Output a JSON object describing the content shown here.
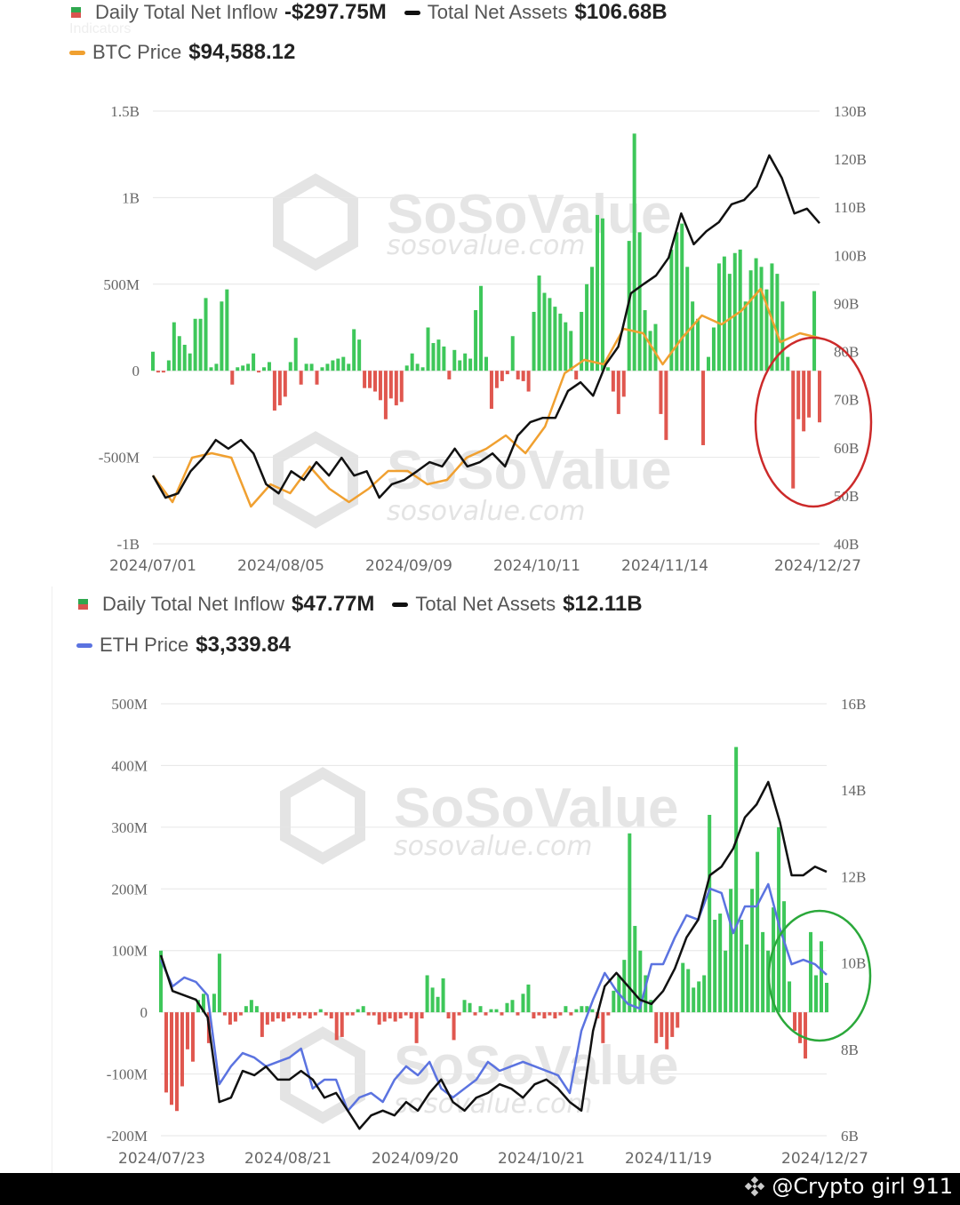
{
  "colors": {
    "inflow_pos": "#3ec75a",
    "inflow_neg": "#e0574f",
    "assets": "#111111",
    "btc_price": "#f0a030",
    "eth_price": "#5b73e0",
    "circle_top": "#cc2a2a",
    "circle_bottom": "#2aa83a",
    "grid": "#e6e6e6"
  },
  "watermark": {
    "brand": "SoSoValue",
    "site": "sosovalue.com"
  },
  "footer": {
    "credit": "@Crypto girl 911",
    "icon": "binance-logo-icon"
  },
  "btc_legend": {
    "inflow_label": "Daily Total Net Inflow",
    "inflow_value": "-$297.75M",
    "assets_label": "Total Net Assets",
    "assets_value": "$106.68B",
    "indicators": "Indicators",
    "price_label": "BTC Price",
    "price_value": "$94,588.12"
  },
  "eth_legend": {
    "inflow_label": "Daily Total Net Inflow",
    "inflow_value": "$47.77M",
    "assets_label": "Total Net Assets",
    "assets_value": "$12.11B",
    "price_label": "ETH Price",
    "price_value": "$3,339.84"
  },
  "chart_data": [
    {
      "type": "bar+line",
      "x_range": [
        "2024/07/01",
        "2024/12/27"
      ],
      "x_ticks": [
        "2024/07/01",
        "2024/08/05",
        "2024/09/09",
        "2024/10/11",
        "2024/11/14",
        "2024/12/27"
      ],
      "y_left": {
        "ticks": [
          "1.5B",
          "1B",
          "500M",
          "0",
          "-500M",
          "-1B"
        ],
        "range_millions": [
          -1000,
          1500
        ]
      },
      "y_right": {
        "ticks": [
          "130B",
          "120B",
          "110B",
          "100B",
          "90B",
          "80B",
          "70B",
          "60B",
          "50B",
          "40B"
        ],
        "range_billions": [
          40,
          130
        ]
      },
      "grid": true,
      "annotation": "red circle around final outflow bars",
      "inflow_millions": [
        110,
        -10,
        -10,
        60,
        280,
        200,
        150,
        100,
        300,
        300,
        420,
        20,
        40,
        400,
        470,
        -80,
        20,
        30,
        40,
        100,
        -10,
        20,
        50,
        -230,
        -200,
        -150,
        50,
        190,
        -80,
        40,
        40,
        -80,
        20,
        40,
        60,
        70,
        80,
        40,
        240,
        180,
        -100,
        -100,
        -120,
        -170,
        -280,
        -160,
        -200,
        -180,
        30,
        100,
        40,
        20,
        250,
        160,
        180,
        140,
        -50,
        120,
        60,
        100,
        70,
        350,
        490,
        80,
        -220,
        -100,
        -60,
        -20,
        200,
        -50,
        -60,
        -120,
        340,
        550,
        450,
        420,
        370,
        330,
        280,
        230,
        -50,
        340,
        500,
        600,
        900,
        880,
        20,
        -120,
        -250,
        -150,
        750,
        1370,
        800,
        350,
        230,
        270,
        -250,
        -400,
        700,
        800,
        850,
        600,
        400,
        300,
        -430,
        80,
        250,
        620,
        660,
        560,
        680,
        700,
        400,
        580,
        650,
        600,
        470,
        620,
        560,
        400,
        80,
        -680,
        -280,
        -350,
        -270,
        460,
        -298
      ],
      "total_net_assets_billions": [
        54.2,
        49.6,
        50.5,
        55.1,
        57.9,
        61.6,
        59.8,
        61.6,
        58.8,
        52.4,
        50.5,
        55.1,
        53.3,
        57.0,
        54.2,
        57.9,
        54.2,
        55.1,
        49.6,
        52.4,
        53.3,
        55.1,
        57.0,
        56.1,
        59.8,
        56.1,
        57.0,
        58.8,
        56.1,
        62.5,
        65.3,
        66.2,
        66.2,
        71.8,
        73.6,
        70.8,
        77.3,
        81.0,
        92.1,
        94.0,
        95.8,
        99.5,
        108.7,
        102.3,
        105.0,
        106.9,
        110.6,
        111.5,
        114.3,
        120.8,
        116.1,
        108.7,
        109.7,
        106.68
      ],
      "btc_price_usd": [
        62757,
        56584,
        66872,
        67901,
        66872,
        55556,
        60700,
        58642,
        64815,
        59671,
        56584,
        59671,
        63786,
        63786,
        60700,
        61728,
        66872,
        68930,
        72016,
        67901,
        74074,
        86420,
        89506,
        88477,
        96708,
        95679,
        88477,
        94650,
        99794,
        97737,
        100823,
        105967,
        93621,
        95679,
        94588
      ]
    },
    {
      "type": "bar+line",
      "x_range": [
        "2024/07/23",
        "2024/12/27"
      ],
      "x_ticks": [
        "2024/07/23",
        "2024/08/21",
        "2024/09/20",
        "2024/10/21",
        "2024/11/19",
        "2024/12/27"
      ],
      "y_left": {
        "ticks": [
          "500M",
          "400M",
          "300M",
          "200M",
          "100M",
          "0",
          "-100M",
          "-200M"
        ],
        "range_millions": [
          -200,
          500
        ]
      },
      "y_right": {
        "ticks": [
          "16B",
          "14B",
          "12B",
          "10B",
          "8B",
          "6B"
        ],
        "range_billions": [
          6,
          16
        ]
      },
      "grid": true,
      "annotation": "green circle around final inflow bars",
      "inflow_millions": [
        100,
        -130,
        -150,
        -160,
        -120,
        -60,
        -80,
        20,
        30,
        -50,
        30,
        95,
        -5,
        -20,
        -15,
        -5,
        10,
        20,
        10,
        -40,
        -20,
        -15,
        -10,
        -15,
        -10,
        -5,
        -10,
        -5,
        -10,
        -5,
        5,
        -5,
        -10,
        -45,
        -40,
        -5,
        -5,
        5,
        10,
        -5,
        -5,
        -20,
        -15,
        -10,
        -15,
        -10,
        -5,
        -10,
        -50,
        -10,
        60,
        40,
        25,
        55,
        -10,
        -45,
        -5,
        20,
        15,
        -5,
        10,
        -5,
        5,
        5,
        -5,
        15,
        20,
        -5,
        30,
        45,
        -10,
        -5,
        -10,
        -5,
        -10,
        -5,
        10,
        -5,
        5,
        10,
        10,
        5,
        -10,
        -50,
        -5,
        35,
        60,
        85,
        290,
        140,
        100,
        60,
        20,
        -50,
        -40,
        -60,
        -40,
        -25,
        80,
        70,
        40,
        50,
        60,
        320,
        150,
        160,
        100,
        200,
        430,
        150,
        110,
        200,
        260,
        130,
        100,
        170,
        300,
        180,
        50,
        -30,
        -50,
        -75,
        130,
        60,
        115,
        47.77
      ],
      "total_net_assets_billions": [
        10.18,
        9.35,
        9.25,
        9.15,
        8.74,
        6.78,
        6.88,
        7.5,
        7.4,
        7.6,
        7.3,
        7.3,
        7.5,
        7.3,
        6.88,
        6.99,
        6.58,
        6.16,
        6.47,
        6.58,
        6.47,
        6.78,
        6.58,
        6.99,
        7.3,
        6.78,
        6.58,
        6.88,
        6.99,
        7.19,
        7.09,
        6.88,
        7.19,
        7.3,
        7.09,
        6.78,
        6.58,
        8.43,
        9.46,
        9.77,
        9.46,
        9.15,
        9.05,
        9.35,
        9.87,
        10.59,
        11.0,
        12.03,
        12.23,
        12.65,
        13.37,
        13.67,
        14.19,
        13.26,
        12.03,
        12.03,
        12.23,
        12.11
      ],
      "eth_price_usd": [
        3448,
        3257,
        3321,
        3289,
        3193,
        2556,
        2684,
        2779,
        2747,
        2684,
        2716,
        2747,
        2811,
        2525,
        2588,
        2588,
        2365,
        2461,
        2493,
        2429,
        2588,
        2684,
        2620,
        2716,
        2525,
        2461,
        2525,
        2588,
        2716,
        2652,
        2684,
        2716,
        2684,
        2652,
        2620,
        2493,
        2939,
        3162,
        3353,
        3225,
        3130,
        3098,
        3416,
        3416,
        3607,
        3767,
        3735,
        3958,
        3926,
        3639,
        3830,
        3830,
        3990,
        3671,
        3416,
        3448,
        3416,
        3340
      ]
    }
  ]
}
